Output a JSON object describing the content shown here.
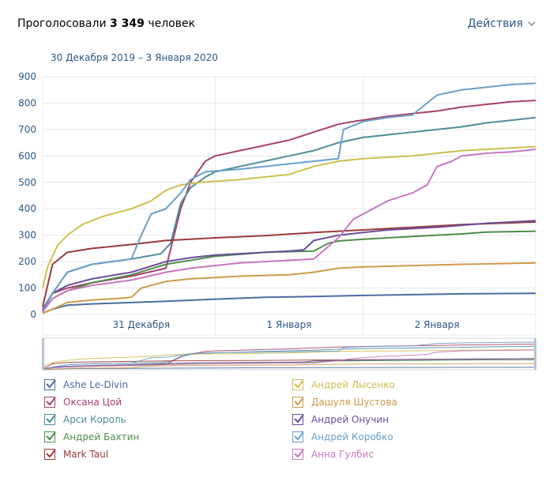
{
  "header": {
    "title_prefix": "Проголосовали",
    "count": "3 349",
    "title_suffix": "человек",
    "actions_label": "Действия"
  },
  "date_range": "30 Декабря 2019 – 3 Января 2020",
  "chart_data": {
    "type": "line",
    "xlabel": "",
    "ylabel": "",
    "ylim": [
      0,
      900
    ],
    "yticks": [
      0,
      100,
      200,
      300,
      400,
      500,
      600,
      700,
      800,
      900
    ],
    "x_ticks": [
      "31 Декабря",
      "1 Января",
      "2 Января"
    ],
    "x_domain": [
      0,
      100
    ],
    "x_tick_positions": [
      20,
      50,
      80
    ],
    "grid": true,
    "legend": "bottom",
    "has_navigator": true,
    "series": [
      {
        "name": "Ashe Le-Divin",
        "color": "#4a6d9e",
        "x": [
          0,
          2,
          5,
          10,
          18,
          25,
          35,
          45,
          55,
          65,
          75,
          85,
          100
        ],
        "y": [
          5,
          20,
          35,
          40,
          45,
          50,
          58,
          65,
          68,
          72,
          75,
          78,
          80
        ]
      },
      {
        "name": "Оксана Цой",
        "color": "#a8406e",
        "x": [
          0,
          2,
          5,
          10,
          18,
          25,
          28,
          30,
          33,
          35,
          40,
          45,
          50,
          55,
          60,
          63,
          70,
          75,
          80,
          85,
          90,
          95,
          100
        ],
        "y": [
          20,
          80,
          100,
          120,
          145,
          175,
          400,
          500,
          580,
          600,
          620,
          640,
          660,
          690,
          720,
          730,
          750,
          760,
          770,
          785,
          795,
          805,
          810
        ]
      },
      {
        "name": "Арси Король",
        "color": "#4e8e99",
        "x": [
          0,
          2,
          5,
          10,
          18,
          24,
          26,
          28,
          30,
          33,
          35,
          40,
          45,
          50,
          55,
          60,
          65,
          70,
          75,
          80,
          85,
          90,
          95,
          100
        ],
        "y": [
          20,
          80,
          160,
          190,
          210,
          230,
          270,
          420,
          480,
          520,
          540,
          560,
          580,
          600,
          620,
          650,
          670,
          680,
          690,
          700,
          710,
          725,
          735,
          745
        ]
      },
      {
        "name": "Андрей Бахтин",
        "color": "#4d8e4a",
        "x": [
          0,
          2,
          5,
          10,
          18,
          25,
          35,
          45,
          55,
          58,
          60,
          65,
          75,
          85,
          90,
          100
        ],
        "y": [
          10,
          60,
          90,
          120,
          150,
          190,
          220,
          235,
          240,
          270,
          278,
          285,
          295,
          305,
          312,
          315
        ]
      },
      {
        "name": "Mark Taul",
        "color": "#9a3a3a",
        "x": [
          0,
          2,
          5,
          10,
          18,
          25,
          35,
          45,
          55,
          65,
          75,
          85,
          100
        ],
        "y": [
          30,
          190,
          235,
          250,
          265,
          280,
          290,
          298,
          310,
          320,
          330,
          340,
          350
        ]
      },
      {
        "name": "Андрей Лысенко",
        "color": "#cdbf4f",
        "x": [
          0,
          1,
          3,
          5,
          8,
          12,
          18,
          22,
          25,
          28,
          32,
          40,
          50,
          55,
          60,
          65,
          70,
          75,
          80,
          85,
          90,
          95,
          100
        ],
        "y": [
          100,
          180,
          260,
          300,
          340,
          370,
          400,
          430,
          470,
          490,
          500,
          510,
          530,
          560,
          580,
          590,
          595,
          600,
          610,
          620,
          625,
          630,
          635
        ]
      },
      {
        "name": "Дашуля Шустова",
        "color": "#cc9b48",
        "x": [
          0,
          2,
          5,
          10,
          15,
          18,
          20,
          25,
          30,
          40,
          50,
          55,
          60,
          65,
          75,
          85,
          100
        ],
        "y": [
          5,
          20,
          45,
          55,
          60,
          65,
          100,
          125,
          135,
          145,
          150,
          160,
          175,
          180,
          185,
          190,
          195
        ]
      },
      {
        "name": "Андрей Онучин",
        "color": "#6a4e9a",
        "x": [
          0,
          2,
          5,
          10,
          18,
          25,
          30,
          35,
          40,
          45,
          50,
          53,
          55,
          60,
          65,
          70,
          80,
          90,
          100
        ],
        "y": [
          15,
          80,
          110,
          135,
          160,
          200,
          215,
          225,
          230,
          235,
          240,
          245,
          280,
          300,
          310,
          320,
          330,
          345,
          355
        ]
      },
      {
        "name": "Андрей Коробко",
        "color": "#6a9fc9",
        "x": [
          0,
          2,
          5,
          10,
          18,
          20,
          22,
          25,
          28,
          30,
          33,
          40,
          45,
          50,
          55,
          60,
          61,
          65,
          70,
          75,
          78,
          80,
          85,
          90,
          95,
          100
        ],
        "y": [
          10,
          80,
          160,
          190,
          210,
          300,
          380,
          400,
          460,
          510,
          540,
          550,
          560,
          570,
          580,
          590,
          700,
          730,
          745,
          755,
          800,
          830,
          850,
          860,
          870,
          875
        ]
      },
      {
        "name": "Анна Гулбис",
        "color": "#c877be",
        "x": [
          0,
          2,
          5,
          10,
          18,
          25,
          30,
          35,
          40,
          45,
          50,
          55,
          60,
          63,
          65,
          70,
          75,
          78,
          80,
          83,
          85,
          90,
          95,
          100
        ],
        "y": [
          10,
          60,
          90,
          110,
          130,
          160,
          175,
          185,
          195,
          200,
          205,
          210,
          290,
          360,
          380,
          430,
          460,
          490,
          560,
          580,
          600,
          610,
          615,
          625
        ]
      }
    ]
  }
}
